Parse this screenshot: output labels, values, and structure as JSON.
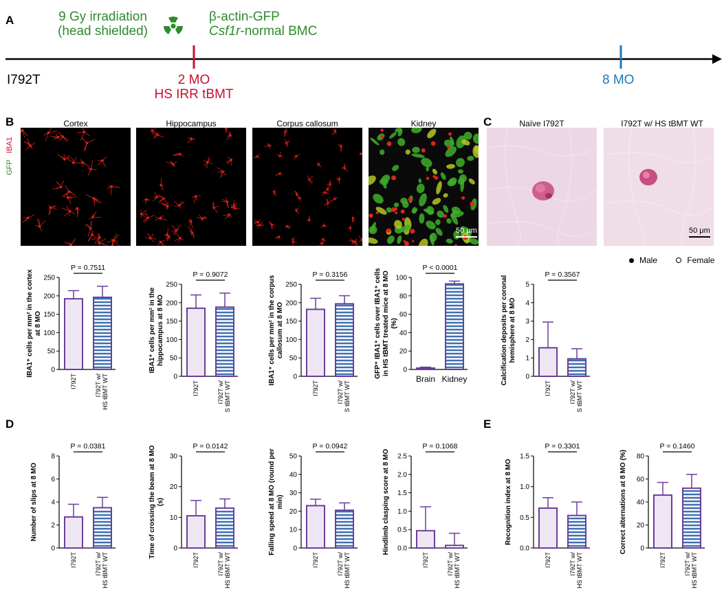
{
  "panelA": {
    "label": "A",
    "irradiation_line1": "9 Gy irradiation",
    "irradiation_line2": "(head shielded)",
    "bmc_line1": "β-actin-GFP",
    "bmc_line2_italic": "Csf1r",
    "bmc_line2_rest": "-normal BMC",
    "start_label": "I792T",
    "mark1_line1": "2 MO",
    "mark1_line2": "HS IRR tBMT",
    "mark2_label": "8 MO",
    "hazard_icon": "radiation-hazard-icon"
  },
  "panelB": {
    "label": "B",
    "titles": [
      "Cortex",
      "Hippocampus",
      "Corpus callosum",
      "Kidney"
    ],
    "stain_iba1": "IBA1",
    "stain_gfp": "GFP",
    "scale_bar": "50 μm"
  },
  "panelC": {
    "label": "C",
    "titles": [
      "Naïve I792T",
      "I792T w/ HS tBMT WT"
    ],
    "scale_bar": "50 μm"
  },
  "legend": {
    "male": "Male",
    "female": "Female"
  },
  "panelD": {
    "label": "D"
  },
  "panelE": {
    "label": "E"
  },
  "chart_data": [
    {
      "type": "bar",
      "panel": "B",
      "categories": [
        "I792T",
        "I792T w/ HS tBMT WT"
      ],
      "values": [
        192,
        196
      ],
      "errors": [
        22,
        30
      ],
      "ylim": [
        0,
        250
      ],
      "yticks": [
        0,
        50,
        100,
        150,
        200,
        250
      ],
      "ylabel": "IBA1⁺ cells per mm² in the cortex at 8 MO",
      "pvalue": "P = 0.7511"
    },
    {
      "type": "bar",
      "panel": "B",
      "categories": [
        "I792T",
        "I792T w/ HS tBMT WT"
      ],
      "values": [
        185,
        188
      ],
      "errors": [
        36,
        38
      ],
      "ylim": [
        0,
        250
      ],
      "yticks": [
        0,
        50,
        100,
        150,
        200,
        250
      ],
      "ylabel": "IBA1⁺ cells per mm² in the hippocampus at 8 MO",
      "pvalue": "P = 0.9072"
    },
    {
      "type": "bar",
      "panel": "B",
      "categories": [
        "I792T",
        "I792T w/ HS tBMT WT"
      ],
      "values": [
        182,
        197
      ],
      "errors": [
        30,
        22
      ],
      "ylim": [
        0,
        250
      ],
      "yticks": [
        0,
        50,
        100,
        150,
        200,
        250
      ],
      "ylabel": "IBA1⁺ cells per mm² in the corpus callosum at 8 MO",
      "pvalue": "P = 0.3156"
    },
    {
      "type": "bar",
      "panel": "B",
      "categories": [
        "Brain",
        "Kidney"
      ],
      "values": [
        1.5,
        93
      ],
      "errors": [
        1,
        3
      ],
      "ylim": [
        0,
        100
      ],
      "yticks": [
        0,
        20,
        40,
        60,
        80,
        100
      ],
      "ylabel": "GFP⁺ IBA1⁺ cells over IBA1⁺ cells in HS tBMT treated mice at 8 MO (%)",
      "pvalue": "P < 0.0001"
    },
    {
      "type": "bar",
      "panel": "C",
      "categories": [
        "I792T",
        "I792T w/ HS tBMT WT"
      ],
      "values": [
        1.55,
        0.95
      ],
      "errors": [
        1.4,
        0.55
      ],
      "ylim": [
        0,
        5
      ],
      "yticks": [
        0,
        1,
        2,
        3,
        4,
        5
      ],
      "ylabel": "Calcification deposits per coronal hemisphere at 8 MO",
      "pvalue": "P = 0.3567"
    },
    {
      "type": "bar",
      "panel": "D",
      "categories": [
        "I792T",
        "I792T w/ HS tBMT WT"
      ],
      "values": [
        2.7,
        3.5
      ],
      "errors": [
        1.1,
        0.9
      ],
      "ylim": [
        0,
        8
      ],
      "yticks": [
        0,
        2,
        4,
        6,
        8
      ],
      "ylabel": "Number of slips at 8 MO",
      "pvalue": "P = 0.0381"
    },
    {
      "type": "bar",
      "panel": "D",
      "categories": [
        "I792T",
        "I792T w/ HS tBMT WT"
      ],
      "values": [
        10.5,
        13
      ],
      "errors": [
        5,
        3
      ],
      "ylim": [
        0,
        30
      ],
      "yticks": [
        0,
        10,
        20,
        30
      ],
      "ylabel": "Time of crossing the beam at 8 MO (s)",
      "pvalue": "P = 0.0142"
    },
    {
      "type": "bar",
      "panel": "D",
      "categories": [
        "I792T",
        "I792T w/ HS tBMT WT"
      ],
      "values": [
        23,
        20.5
      ],
      "errors": [
        3.5,
        4
      ],
      "ylim": [
        0,
        50
      ],
      "yticks": [
        0,
        10,
        20,
        30,
        40,
        50
      ],
      "ylabel": "Falling speed at 8 MO (round per min)",
      "pvalue": "P = 0.0942"
    },
    {
      "type": "bar",
      "panel": "D",
      "categories": [
        "I792T",
        "I792T w/ HS tBMT WT"
      ],
      "values": [
        0.47,
        0.07
      ],
      "errors": [
        0.65,
        0.33
      ],
      "ylim": [
        0,
        2.5
      ],
      "yticks": [
        0.0,
        0.5,
        1.0,
        1.5,
        2.0,
        2.5
      ],
      "ylabel": "Hindlimb clasping score at 8 MO",
      "pvalue": "P = 0.1068"
    },
    {
      "type": "bar",
      "panel": "E",
      "categories": [
        "I792T",
        "I792T w/ HS tBMT WT"
      ],
      "values": [
        0.65,
        0.53
      ],
      "errors": [
        0.17,
        0.22
      ],
      "ylim": [
        0,
        1.5
      ],
      "yticks": [
        0.0,
        0.5,
        1.0,
        1.5
      ],
      "ylabel": "Recognition index at 8 MO",
      "pvalue": "P = 0.3301"
    },
    {
      "type": "bar",
      "panel": "E",
      "categories": [
        "I792T",
        "I792T w/ HS tBMT WT"
      ],
      "values": [
        46,
        52
      ],
      "errors": [
        11,
        12
      ],
      "ylim": [
        0,
        80
      ],
      "yticks": [
        0,
        20,
        40,
        60,
        80
      ],
      "ylabel": "Correct alternations at 8 MO (%)",
      "pvalue": "P = 0.1460"
    }
  ],
  "colors": {
    "bar_stroke": "#6a3d9a",
    "bar_fill_left": "#efe6f3",
    "stripe": "#3f6fb0",
    "green": "#2e8b2e",
    "red": "#c8102e",
    "blue": "#1f78b4"
  }
}
